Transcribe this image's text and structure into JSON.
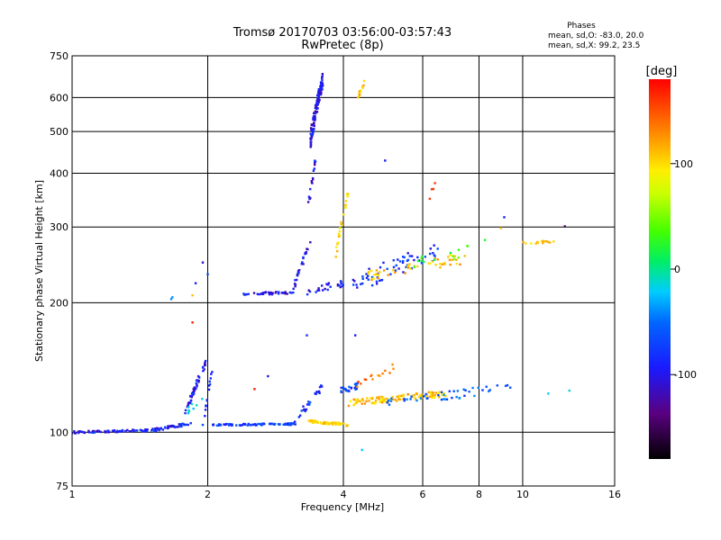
{
  "chart_data": {
    "type": "scatter",
    "title": "Tromsø 20170703 03:56:00-03:57:43",
    "subtitle": "RwPretec (8p)",
    "xlabel": "Frequency [MHz]",
    "ylabel": "Stationary phase Virtual Height [km]",
    "x_scale": "log2",
    "y_scale": "log",
    "xlim": [
      1,
      16
    ],
    "ylim": [
      75,
      750
    ],
    "x_ticks": [
      "1",
      "2",
      "4",
      "6",
      "8",
      "10",
      "16"
    ],
    "x_tick_values": [
      1,
      2,
      4,
      6,
      8,
      10,
      16
    ],
    "y_ticks": [
      "75",
      "100",
      "200",
      "300",
      "400",
      "500",
      "600",
      "750"
    ],
    "y_tick_values": [
      75,
      100,
      200,
      300,
      400,
      500,
      600,
      750
    ],
    "grid_x": [
      2,
      4,
      6,
      8,
      10
    ],
    "grid_y": [
      100,
      200,
      300,
      400,
      500,
      600
    ],
    "stats": {
      "heading": "Phases",
      "line1": "mean, sd,O: -83.0, 20.0",
      "line2": "mean, sd,X:  99.2, 23.5"
    },
    "colorbar": {
      "unit": "[deg]",
      "range": [
        -180,
        180
      ],
      "ticks": [
        "100",
        "0",
        "-100"
      ],
      "tick_values": [
        100,
        0,
        -100
      ]
    },
    "clusters": [
      {
        "f0": 1.0,
        "f1": 1.5,
        "h0": 100,
        "h1": 101,
        "phase": -110,
        "n": 70,
        "jit": 0.6
      },
      {
        "f0": 1.5,
        "f1": 1.85,
        "h0": 101,
        "h1": 105,
        "phase": -105,
        "n": 40,
        "jit": 0.8
      },
      {
        "f0": 1.78,
        "f1": 1.98,
        "h0": 110,
        "h1": 145,
        "phase": -110,
        "n": 45,
        "jit": 2.5
      },
      {
        "f0": 1.8,
        "f1": 1.95,
        "h0": 112,
        "h1": 120,
        "phase": -40,
        "n": 8,
        "jit": 2.0
      },
      {
        "f0": 1.95,
        "f1": 2.05,
        "h0": 103,
        "h1": 140,
        "phase": -100,
        "n": 14,
        "jit": 2.0
      },
      {
        "f0": 2.05,
        "f1": 3.15,
        "h0": 104,
        "h1": 104.5,
        "phase": -95,
        "n": 80,
        "jit": 0.5
      },
      {
        "f0": 3.1,
        "f1": 3.6,
        "h0": 105,
        "h1": 128,
        "phase": -100,
        "n": 25,
        "jit": 2.5
      },
      {
        "f0": 3.35,
        "f1": 4.1,
        "h0": 106,
        "h1": 104,
        "phase": 105,
        "n": 55,
        "jit": 0.7
      },
      {
        "f0": 3.95,
        "f1": 4.3,
        "h0": 125,
        "h1": 128,
        "phase": -95,
        "n": 25,
        "jit": 2.0
      },
      {
        "f0": 4.1,
        "f1": 6.8,
        "h0": 117,
        "h1": 123,
        "phase": 110,
        "n": 110,
        "jit": 2.0
      },
      {
        "f0": 5.0,
        "f1": 9.5,
        "h0": 117,
        "h1": 127,
        "phase": -80,
        "n": 45,
        "jit": 3.0
      },
      {
        "f0": 4.2,
        "f1": 5.2,
        "h0": 128,
        "h1": 142,
        "phase": 140,
        "n": 15,
        "jit": 3.0
      },
      {
        "f0": 2.4,
        "f1": 3.1,
        "h0": 210,
        "h1": 211,
        "phase": -115,
        "n": 40,
        "jit": 1.5
      },
      {
        "f0": 3.1,
        "f1": 3.4,
        "h0": 215,
        "h1": 280,
        "phase": -115,
        "n": 25,
        "jit": 5.0
      },
      {
        "f0": 3.3,
        "f1": 3.5,
        "h0": 300,
        "h1": 450,
        "phase": -115,
        "n": 18,
        "jit": 10.0
      },
      {
        "f0": 3.38,
        "f1": 3.6,
        "h0": 480,
        "h1": 660,
        "phase": -115,
        "n": 130,
        "jit": 25.0
      },
      {
        "f0": 3.3,
        "f1": 4.0,
        "h0": 212,
        "h1": 222,
        "phase": -110,
        "n": 25,
        "jit": 4.0
      },
      {
        "f0": 3.85,
        "f1": 4.1,
        "h0": 260,
        "h1": 360,
        "phase": 100,
        "n": 25,
        "jit": 8.0
      },
      {
        "f0": 4.3,
        "f1": 4.45,
        "h0": 595,
        "h1": 650,
        "phase": 110,
        "n": 12,
        "jit": 10.0
      },
      {
        "f0": 4.0,
        "f1": 6.5,
        "h0": 215,
        "h1": 265,
        "phase": -100,
        "n": 60,
        "jit": 12.0
      },
      {
        "f0": 4.5,
        "f1": 7.5,
        "h0": 230,
        "h1": 255,
        "phase": 110,
        "n": 50,
        "jit": 8.0
      },
      {
        "f0": 5.5,
        "f1": 8.5,
        "h0": 240,
        "h1": 275,
        "phase": 20,
        "n": 15,
        "jit": 10.0
      },
      {
        "f0": 10.0,
        "f1": 11.8,
        "h0": 275,
        "h1": 278,
        "phase": 100,
        "n": 15,
        "jit": 2.0
      },
      {
        "f0": 6.2,
        "f1": 6.4,
        "h0": 350,
        "h1": 375,
        "phase": 150,
        "n": 4,
        "jit": 8.0
      }
    ],
    "points": [
      {
        "x": 1.66,
        "y": 204,
        "phase": -60
      },
      {
        "x": 1.67,
        "y": 206,
        "phase": -60
      },
      {
        "x": 1.85,
        "y": 208,
        "phase": 110
      },
      {
        "x": 1.88,
        "y": 222,
        "phase": -110
      },
      {
        "x": 1.95,
        "y": 248,
        "phase": -120
      },
      {
        "x": 2.0,
        "y": 233,
        "phase": -90
      },
      {
        "x": 1.85,
        "y": 180,
        "phase": 170
      },
      {
        "x": 2.72,
        "y": 135,
        "phase": -110
      },
      {
        "x": 2.54,
        "y": 126,
        "phase": 170
      },
      {
        "x": 3.32,
        "y": 168,
        "phase": -100
      },
      {
        "x": 4.25,
        "y": 168,
        "phase": -110
      },
      {
        "x": 4.4,
        "y": 91,
        "phase": -40
      },
      {
        "x": 4.95,
        "y": 428,
        "phase": -110
      },
      {
        "x": 12.4,
        "y": 301,
        "phase": -150
      },
      {
        "x": 9.1,
        "y": 316,
        "phase": -110
      },
      {
        "x": 8.95,
        "y": 298,
        "phase": 110
      },
      {
        "x": 11.4,
        "y": 123,
        "phase": -40
      },
      {
        "x": 12.7,
        "y": 125,
        "phase": -30
      }
    ]
  }
}
